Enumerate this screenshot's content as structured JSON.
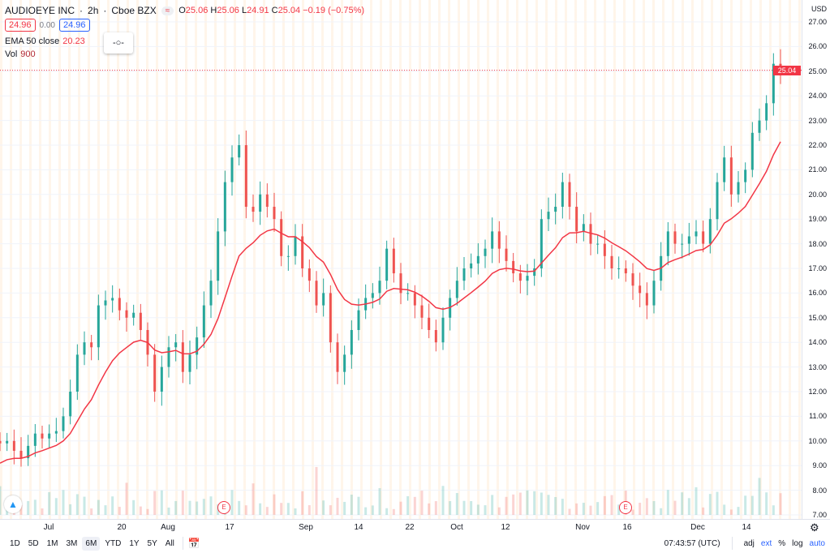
{
  "header": {
    "symbol": "AUDIOEYE INC",
    "interval": "2h",
    "exchange": "Cboe BZX",
    "sep": "·",
    "pill": "≈",
    "o_label": "O",
    "o": "25.06",
    "h_label": "H",
    "h": "25.06",
    "l_label": "L",
    "l": "24.91",
    "c_label": "C",
    "c": "25.04",
    "change": "−0.19 (−0.75%)",
    "bid": "24.96",
    "spread": "0.00",
    "ask": "24.96"
  },
  "indicators": {
    "ema_label": "EMA 50 close",
    "ema_value": "20.23",
    "vol_label": "Vol",
    "vol_value": "900",
    "widget_icon": "-○-"
  },
  "yaxis": {
    "currency": "USD",
    "ticks": [
      "27.00",
      "26.00",
      "25.00",
      "24.00",
      "23.00",
      "22.00",
      "21.00",
      "20.00",
      "19.00",
      "18.00",
      "17.00",
      "16.00",
      "15.00",
      "14.00",
      "13.00",
      "12.00",
      "11.00",
      "10.00",
      "9.00",
      "8.00",
      "7.00"
    ],
    "last_price": "25.04"
  },
  "xaxis": {
    "ticks": [
      "Jul",
      "20",
      "Aug",
      "17",
      "Sep",
      "14",
      "22",
      "Oct",
      "12",
      "Nov",
      "16",
      "Dec",
      "14"
    ]
  },
  "earnings_marker": "E",
  "toolbar": {
    "ranges": [
      "1D",
      "5D",
      "1M",
      "3M",
      "6M",
      "YTD",
      "1Y",
      "5Y",
      "All"
    ],
    "selected": "6M",
    "time": "07:43:57 (UTC)",
    "adj": "adj",
    "ext": "ext",
    "pct": "%",
    "log": "log",
    "auto": "auto"
  },
  "colors": {
    "up": "#26a69a",
    "down": "#ef5350",
    "ema": "#f23645",
    "accent": "#2962ff"
  },
  "chart_data": {
    "type": "candlestick",
    "ylim": [
      7,
      27
    ],
    "grid": true,
    "closes": [
      9.9,
      10.0,
      9.6,
      9.3,
      9.8,
      10.3,
      10.1,
      10.3,
      10.4,
      11.0,
      12.0,
      13.5,
      14.0,
      13.8,
      15.5,
      15.7,
      15.8,
      15.3,
      15.0,
      15.2,
      14.5,
      13.5,
      12.0,
      13.0,
      13.8,
      14.0,
      12.8,
      13.5,
      14.2,
      15.5,
      16.5,
      18.5,
      20.5,
      21.5,
      22.0,
      19.5,
      19.3,
      20.0,
      19.5,
      19.0,
      17.5,
      17.5,
      18.3,
      17.0,
      16.5,
      15.5,
      16.0,
      14.0,
      12.8,
      13.5,
      14.5,
      15.3,
      15.8,
      16.0,
      16.5,
      17.8,
      16.8,
      16.0,
      16.0,
      15.5,
      15.0,
      14.5,
      14.0,
      15.0,
      15.8,
      16.5,
      17.0,
      17.2,
      17.5,
      17.8,
      18.5,
      17.8,
      17.3,
      16.8,
      16.5,
      16.7,
      17.0,
      19.0,
      19.3,
      19.5,
      20.5,
      19.5,
      18.5,
      18.8,
      18.0,
      18.0,
      17.5,
      17.0,
      17.0,
      16.8,
      16.3,
      16.0,
      15.5,
      16.5,
      17.5,
      18.5,
      18.0,
      18.0,
      18.3,
      18.5,
      18.0,
      19.0,
      20.5,
      21.5,
      20.0,
      20.5,
      21.0,
      22.5,
      23.0,
      23.7,
      25.3,
      25.04
    ],
    "ema_last": 20.23
  }
}
